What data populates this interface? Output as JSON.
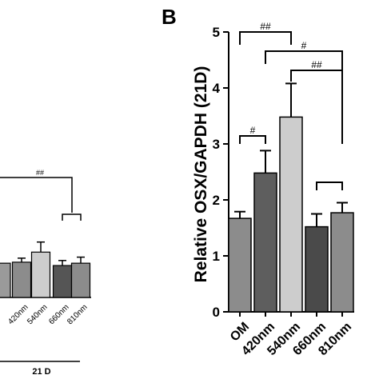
{
  "chart_data": [
    {
      "type": "bar",
      "panel": "",
      "title": "",
      "xlabel": "",
      "ylabel": "",
      "group_label": "21 D",
      "categories": [
        "420nm",
        "540nm",
        "660nm",
        "810nm"
      ],
      "values": [
        1.05,
        1.35,
        0.95,
        1.02
      ],
      "errors": [
        0.12,
        0.3,
        0.15,
        0.18
      ],
      "colors": [
        "#8c8c8c",
        "#cdcdcd",
        "#555555",
        "#8c8c8c"
      ],
      "ylim": [
        0,
        2.6
      ],
      "annotations": [
        {
          "label": "##"
        }
      ],
      "grid": false,
      "legend": "none"
    },
    {
      "type": "bar",
      "panel": "B",
      "title": "",
      "xlabel": "",
      "ylabel": "Relative OSX/GAPDH (21D)",
      "categories": [
        "OM",
        "420nm",
        "540nm",
        "660nm",
        "810nm"
      ],
      "values": [
        1.67,
        2.48,
        3.48,
        1.52,
        1.77
      ],
      "errors": [
        0.12,
        0.4,
        0.6,
        0.23,
        0.18
      ],
      "colors": [
        "#8c8c8c",
        "#5e5e5e",
        "#cdcdcd",
        "#4a4a4a",
        "#8c8c8c"
      ],
      "ylim": [
        0,
        5
      ],
      "yticks": [
        0,
        1,
        2,
        3,
        4,
        5
      ],
      "annotations": [
        {
          "label": "##"
        },
        {
          "label": "#"
        },
        {
          "label": "##"
        },
        {
          "label": "#"
        }
      ],
      "grid": false,
      "legend": "none"
    }
  ]
}
